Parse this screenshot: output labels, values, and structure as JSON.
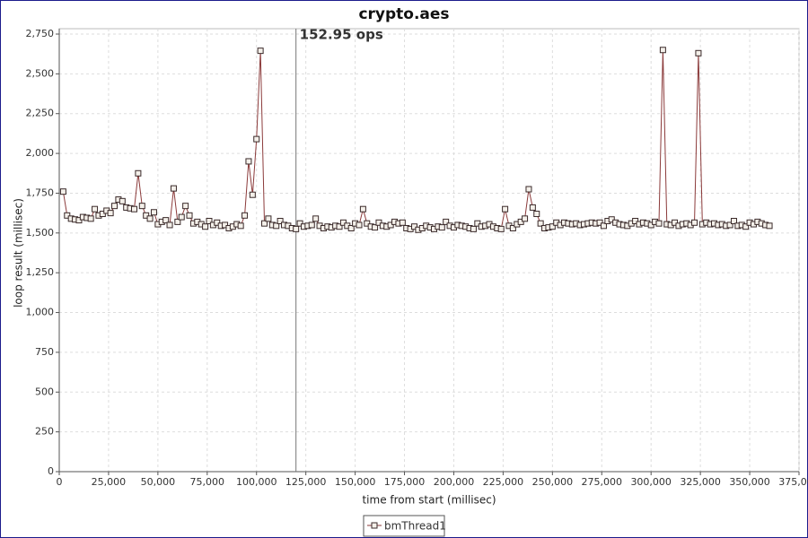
{
  "chart_data": {
    "type": "line",
    "title": "crypto.aes",
    "x_label": "time from start (millisec)",
    "y_label": "loop result (millisec)",
    "xlim": [
      0,
      375000
    ],
    "ylim": [
      0,
      2750
    ],
    "xticks": [
      0,
      {
        "value": 25000,
        "label": "25,000"
      },
      {
        "value": 50000,
        "label": "50,000"
      },
      {
        "value": 75000,
        "label": "75,000"
      },
      {
        "value": 100000,
        "label": "100,000"
      },
      {
        "value": 125000,
        "label": "125,000"
      },
      {
        "value": 150000,
        "label": "150,000"
      },
      {
        "value": 175000,
        "label": "175,000"
      },
      {
        "value": 200000,
        "label": "200,000"
      },
      {
        "value": 225000,
        "label": "225,000"
      },
      {
        "value": 250000,
        "label": "250,000"
      },
      {
        "value": 275000,
        "label": "275,000"
      },
      {
        "value": 300000,
        "label": "300,000"
      },
      {
        "value": 325000,
        "label": "325,000"
      },
      {
        "value": 350000,
        "label": "350,000"
      },
      {
        "value": 375000,
        "label": "375,000"
      }
    ],
    "yticks": [
      0,
      250,
      500,
      750,
      {
        "value": 1000,
        "label": "1,000"
      },
      {
        "value": 1250,
        "label": "1,250"
      },
      {
        "value": 1500,
        "label": "1,500"
      },
      {
        "value": 1750,
        "label": "1,750"
      },
      {
        "value": 2000,
        "label": "2,000"
      },
      {
        "value": 2250,
        "label": "2,250"
      },
      {
        "value": 2500,
        "label": "2,500"
      },
      {
        "value": 2750,
        "label": "2,750"
      }
    ],
    "grid": true,
    "marker": {
      "x": 120000,
      "label": "152.95 ops"
    },
    "x": [
      2000,
      4000,
      6000,
      8000,
      10000,
      12000,
      14000,
      16000,
      18000,
      20000,
      22000,
      24000,
      26000,
      28000,
      30000,
      32000,
      34000,
      36000,
      38000,
      40000,
      42000,
      44000,
      46000,
      48000,
      50000,
      52000,
      54000,
      56000,
      58000,
      60000,
      62000,
      64000,
      66000,
      68000,
      70000,
      72000,
      74000,
      76000,
      78000,
      80000,
      82000,
      84000,
      86000,
      88000,
      90000,
      92000,
      94000,
      96000,
      98000,
      100000,
      102000,
      104000,
      106000,
      108000,
      110000,
      112000,
      114000,
      116000,
      118000,
      120000,
      122000,
      124000,
      126000,
      128000,
      130000,
      132000,
      134000,
      136000,
      138000,
      140000,
      142000,
      144000,
      146000,
      148000,
      150000,
      152000,
      154000,
      156000,
      158000,
      160000,
      162000,
      164000,
      166000,
      168000,
      170000,
      172000,
      174000,
      176000,
      178000,
      180000,
      182000,
      184000,
      186000,
      188000,
      190000,
      192000,
      194000,
      196000,
      198000,
      200000,
      202000,
      204000,
      206000,
      208000,
      210000,
      212000,
      214000,
      216000,
      218000,
      220000,
      222000,
      224000,
      226000,
      228000,
      230000,
      232000,
      234000,
      236000,
      238000,
      240000,
      242000,
      244000,
      246000,
      248000,
      250000,
      252000,
      254000,
      256000,
      258000,
      260000,
      262000,
      264000,
      266000,
      268000,
      270000,
      272000,
      274000,
      276000,
      278000,
      280000,
      282000,
      284000,
      286000,
      288000,
      290000,
      292000,
      294000,
      296000,
      298000,
      300000,
      302000,
      304000,
      306000,
      308000,
      310000,
      312000,
      314000,
      316000,
      318000,
      320000,
      322000,
      324000,
      326000,
      328000,
      330000,
      332000,
      334000,
      336000,
      338000,
      340000,
      342000,
      344000,
      346000,
      348000,
      350000,
      352000,
      354000,
      356000,
      358000,
      360000
    ],
    "series": [
      {
        "name": "bmThread1",
        "color": "#8b3a3a",
        "values": [
          1760,
          1610,
          1590,
          1585,
          1580,
          1600,
          1595,
          1590,
          1650,
          1610,
          1620,
          1640,
          1625,
          1670,
          1710,
          1700,
          1660,
          1655,
          1650,
          1875,
          1670,
          1610,
          1590,
          1630,
          1555,
          1570,
          1580,
          1550,
          1780,
          1570,
          1600,
          1670,
          1610,
          1560,
          1570,
          1555,
          1540,
          1575,
          1550,
          1565,
          1545,
          1550,
          1530,
          1540,
          1555,
          1545,
          1610,
          1950,
          1740,
          2090,
          2645,
          1560,
          1590,
          1550,
          1545,
          1575,
          1550,
          1545,
          1530,
          1525,
          1560,
          1540,
          1545,
          1550,
          1590,
          1545,
          1530,
          1540,
          1535,
          1545,
          1540,
          1565,
          1545,
          1530,
          1560,
          1550,
          1650,
          1560,
          1540,
          1535,
          1565,
          1545,
          1540,
          1550,
          1570,
          1560,
          1565,
          1530,
          1525,
          1540,
          1520,
          1530,
          1545,
          1535,
          1525,
          1540,
          1535,
          1570,
          1545,
          1535,
          1550,
          1545,
          1540,
          1530,
          1525,
          1560,
          1540,
          1545,
          1555,
          1540,
          1530,
          1525,
          1650,
          1545,
          1530,
          1555,
          1570,
          1590,
          1775,
          1660,
          1620,
          1560,
          1530,
          1535,
          1540,
          1565,
          1550,
          1565,
          1560,
          1555,
          1560,
          1550,
          1555,
          1560,
          1565,
          1560,
          1565,
          1545,
          1575,
          1585,
          1565,
          1555,
          1550,
          1545,
          1560,
          1575,
          1555,
          1565,
          1560,
          1550,
          1570,
          1560,
          2650,
          1555,
          1550,
          1565,
          1545,
          1555,
          1560,
          1550,
          1565,
          2630,
          1555,
          1565,
          1555,
          1560,
          1550,
          1555,
          1545,
          1550,
          1575,
          1545,
          1550,
          1540,
          1565,
          1555,
          1570,
          1560,
          1550,
          1545
        ]
      }
    ]
  }
}
